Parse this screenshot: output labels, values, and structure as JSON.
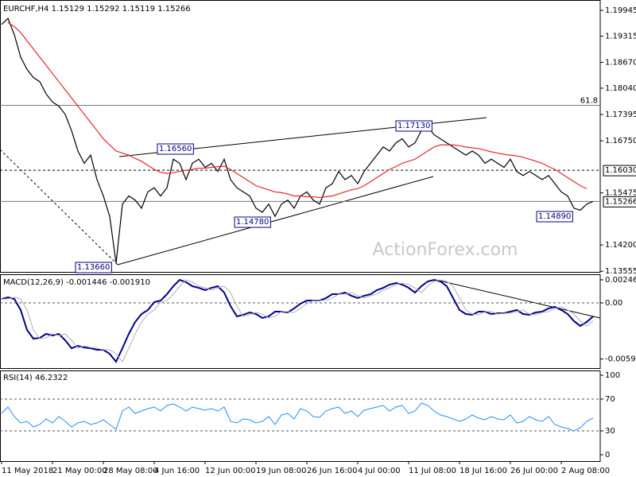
{
  "chart_data": [
    {
      "type": "line",
      "title": "EURCHF,H4",
      "header_values": [
        1.15129,
        1.15292,
        1.15119,
        1.15266
      ],
      "categories": [
        "11 May 2018",
        null,
        null,
        null,
        null,
        null,
        null,
        null,
        "21 May 00:00",
        null,
        null,
        null,
        null,
        null,
        null,
        null,
        "28 May 08:00",
        null,
        null,
        null,
        null,
        null,
        null,
        null,
        "4 Jun 16:00",
        null,
        null,
        null,
        null,
        null,
        null,
        null,
        "12 Jun 00:00",
        null,
        null,
        null,
        null,
        null,
        null,
        null,
        "19 Jun 08:00",
        null,
        null,
        null,
        null,
        null,
        null,
        null,
        "26 Jun 16:00",
        null,
        null,
        null,
        null,
        null,
        null,
        null,
        "4 Jul 00:00",
        null,
        null,
        null,
        null,
        null,
        null,
        null,
        "11 Jul 08:00",
        null,
        null,
        null,
        null,
        null,
        null,
        null,
        "18 Jul 16:00",
        null,
        null,
        null,
        null,
        null,
        null,
        null,
        "26 Jul 00:00",
        null,
        null,
        null,
        null,
        null,
        null,
        null,
        "2 Aug 08:00",
        null,
        null,
        null,
        null,
        null
      ],
      "series": [
        {
          "color": "#000000",
          "width": 1.2,
          "values": [
            1.196,
            1.1975,
            1.1935,
            1.188,
            1.185,
            1.183,
            1.182,
            1.179,
            1.177,
            1.176,
            1.174,
            1.17,
            1.165,
            1.162,
            1.164,
            1.158,
            1.154,
            1.149,
            1.1375,
            1.152,
            1.154,
            1.153,
            1.151,
            1.155,
            1.156,
            1.154,
            1.156,
            1.163,
            1.162,
            1.158,
            1.162,
            1.163,
            1.161,
            1.162,
            1.16,
            1.163,
            1.158,
            1.156,
            1.155,
            1.154,
            1.151,
            1.15,
            1.152,
            1.149,
            1.152,
            1.153,
            1.151,
            1.154,
            1.155,
            1.153,
            1.152,
            1.156,
            1.157,
            1.16,
            1.158,
            1.159,
            1.157,
            1.16,
            1.162,
            1.164,
            1.166,
            1.165,
            1.167,
            1.168,
            1.166,
            1.167,
            1.17,
            1.171,
            1.169,
            1.168,
            1.167,
            1.166,
            1.165,
            1.164,
            1.165,
            1.164,
            1.162,
            1.163,
            1.162,
            1.161,
            1.163,
            1.16,
            1.159,
            1.16,
            1.159,
            1.158,
            1.159,
            1.157,
            1.155,
            1.154,
            1.151,
            1.1505,
            1.152,
            1.15266
          ]
        },
        {
          "color": "#e8262a",
          "width": 1.2,
          "values": [
            null,
            1.1965,
            1.1955,
            1.194,
            1.192,
            1.19,
            1.188,
            1.186,
            1.184,
            1.182,
            1.18,
            1.178,
            1.176,
            1.174,
            1.172,
            1.17,
            1.168,
            1.1665,
            1.165,
            1.1645,
            1.164,
            1.1632,
            1.1625,
            1.1615,
            1.1605,
            1.1598,
            1.1595,
            1.1597,
            1.16,
            1.1603,
            1.1605,
            1.1608,
            1.1608,
            1.161,
            1.1612,
            1.1613,
            1.1605,
            1.1595,
            1.1585,
            1.1575,
            1.1565,
            1.156,
            1.1555,
            1.155,
            1.1548,
            1.1545,
            1.154,
            1.154,
            1.1538,
            1.1538,
            1.1536,
            1.1538,
            1.154,
            1.1545,
            1.155,
            1.1555,
            1.1558,
            1.1565,
            1.1575,
            1.1585,
            1.1595,
            1.1605,
            1.1612,
            1.162,
            1.1625,
            1.163,
            1.164,
            1.165,
            1.166,
            1.1665,
            1.1665,
            1.1665,
            1.1663,
            1.166,
            1.1658,
            1.1656,
            1.1652,
            1.1648,
            1.1645,
            1.1642,
            1.164,
            1.1638,
            1.1635,
            1.163,
            1.1625,
            1.162,
            1.1612,
            1.1605,
            1.1595,
            1.1585,
            1.1575,
            1.1565,
            1.1558,
            null
          ]
        }
      ],
      "ylim": [
        1.1354,
        1.2018
      ],
      "yticks": [
        1.19945,
        1.19315,
        {
          "value": 1.1867,
          "label": "1.18670"
        },
        {
          "value": 1.1804,
          "label": "1.18040"
        },
        1.17395,
        {
          "value": 1.1675,
          "label": "1.16750"
        },
        1.15475,
        {
          "value": 1.142,
          "label": "1.14200"
        },
        1.13555
      ],
      "hlines": [
        {
          "value": 1.1603,
          "label": "1.16030",
          "style": "dashed",
          "axis_box": true
        },
        {
          "value": 1.15266,
          "label": "1.15266",
          "style": "solid",
          "axis_box": true
        },
        {
          "value": 1.1762,
          "label": "61.8",
          "style": "solid",
          "axis_box": false
        }
      ],
      "annotations": [
        {
          "label": "1.16560"
        },
        {
          "label": "1.17130"
        },
        {
          "label": "1.14780"
        },
        {
          "label": "1.14890"
        },
        {
          "label": "1.13660"
        }
      ],
      "watermark": "ActionForex.com"
    },
    {
      "type": "line",
      "title": "MACD(12,26,9)",
      "header_values": [
        -0.001446,
        {
          "value": -0.00191,
          "label": "-0.001910"
        }
      ],
      "series": [
        {
          "color": "#00008b",
          "width": 2,
          "values": [
            0.00042,
            0.00059,
            0.00042,
            -0.00076,
            -0.00289,
            -0.00382,
            -0.00374,
            -0.00331,
            -0.00348,
            -0.00331,
            -0.00399,
            -0.00484,
            -0.00459,
            -0.00476,
            -0.00484,
            -0.00501,
            -0.00501,
            -0.00544,
            -0.00628,
            -0.00484,
            -0.00331,
            -0.00204,
            -0.00119,
            -0.00076,
            8e-05,
            0.00025,
            0.00093,
            0.00178,
            0.00246,
            0.00221,
            0.00178,
            0.00161,
            0.00136,
            0.00161,
            0.00178,
            0.0011,
            -0.00034,
            -0.00144,
            -0.00127,
            -0.00102,
            -0.00119,
            -0.00161,
            -0.00144,
            -0.00093,
            -0.00093,
            -0.00102,
            -0.00059,
            -8e-05,
            0.00025,
            0.00025,
            0.00025,
            0.00051,
            0.00093,
            0.00093,
            0.0011,
            0.00076,
            0.00051,
            0.00076,
            0.00093,
            0.00136,
            0.00161,
            0.00195,
            0.00212,
            0.00195,
            0.00161,
            0.0011,
            0.00178,
            0.00229,
            0.00246,
            0.00229,
            0.00178,
            0.00051,
            -0.00076,
            -0.00119,
            -0.00127,
            -0.00093,
            -0.00093,
            -0.00119,
            -0.0011,
            -0.0011,
            -0.00093,
            -0.00076,
            -0.00119,
            -0.00127,
            -0.00102,
            -0.00093,
            -0.00059,
            -0.00042,
            -0.00076,
            -0.00119,
            -0.00195,
            -0.00246,
            -0.00204,
            -0.00145
          ]
        },
        {
          "color": "#b0b0b0",
          "width": 1,
          "values": [
            0.0004,
            0.00042,
            0.00059,
            0.00042,
            -0.00076,
            -0.00289,
            -0.00382,
            -0.00374,
            -0.00331,
            -0.00348,
            -0.00331,
            -0.00399,
            -0.00484,
            -0.00459,
            -0.00476,
            -0.00484,
            -0.00501,
            -0.00501,
            -0.00544,
            -0.00628,
            -0.00484,
            -0.00331,
            -0.00204,
            -0.00119,
            -0.00076,
            8e-05,
            0.00025,
            0.00093,
            0.00178,
            0.00246,
            0.00221,
            0.00178,
            0.00161,
            0.00136,
            0.00161,
            0.00178,
            0.0011,
            -0.00034,
            -0.00144,
            -0.00127,
            -0.00102,
            -0.00119,
            -0.00161,
            -0.00144,
            -0.00093,
            -0.00093,
            -0.00102,
            -0.00059,
            -8e-05,
            0.00025,
            0.00025,
            0.00025,
            0.00051,
            0.00093,
            0.00093,
            0.0011,
            0.00076,
            0.00051,
            0.00076,
            0.00093,
            0.00136,
            0.00161,
            0.00195,
            0.00212,
            0.00195,
            0.00161,
            0.0011,
            0.00178,
            0.00229,
            0.00246,
            0.00229,
            0.00178,
            0.00051,
            -0.00076,
            -0.00119,
            -0.00127,
            -0.00093,
            -0.00093,
            -0.00119,
            -0.0011,
            -0.0011,
            -0.00093,
            -0.00076,
            -0.00119,
            -0.00127,
            -0.00102,
            -0.00093,
            -0.00059,
            -0.00042,
            -0.00076,
            -0.00119,
            -0.00195,
            -0.00246,
            -0.00191
          ]
        }
      ],
      "ylim": [
        -0.00696,
        0.00297
      ],
      "yticks": [
        0.002463,
        {
          "value": 0,
          "label": "0.00"
        },
        -0.005992
      ],
      "levels": [
        0
      ]
    },
    {
      "type": "line",
      "title": "RSI(14)",
      "header_values": [
        46.2322
      ],
      "series": [
        {
          "color": "#1e90ff",
          "width": 1,
          "values": [
            52,
            60,
            48,
            40,
            42,
            35,
            38,
            45,
            40,
            48,
            42,
            35,
            40,
            42,
            38,
            40,
            44,
            38,
            32,
            55,
            60,
            52,
            55,
            58,
            60,
            55,
            62,
            64,
            60,
            55,
            60,
            58,
            56,
            58,
            55,
            60,
            42,
            40,
            45,
            44,
            40,
            42,
            48,
            38,
            50,
            52,
            45,
            58,
            55,
            48,
            47,
            55,
            58,
            60,
            52,
            55,
            48,
            56,
            58,
            60,
            62,
            55,
            60,
            62,
            52,
            55,
            65,
            62,
            55,
            50,
            48,
            45,
            42,
            45,
            50,
            46,
            44,
            48,
            45,
            44,
            50,
            40,
            42,
            48,
            44,
            42,
            48,
            38,
            35,
            33,
            30,
            34,
            42,
            46.2322
          ]
        }
      ],
      "ylim": [
        -8,
        105
      ],
      "yticks": [
        100,
        70,
        30,
        0
      ],
      "levels": [
        70,
        30
      ]
    }
  ]
}
